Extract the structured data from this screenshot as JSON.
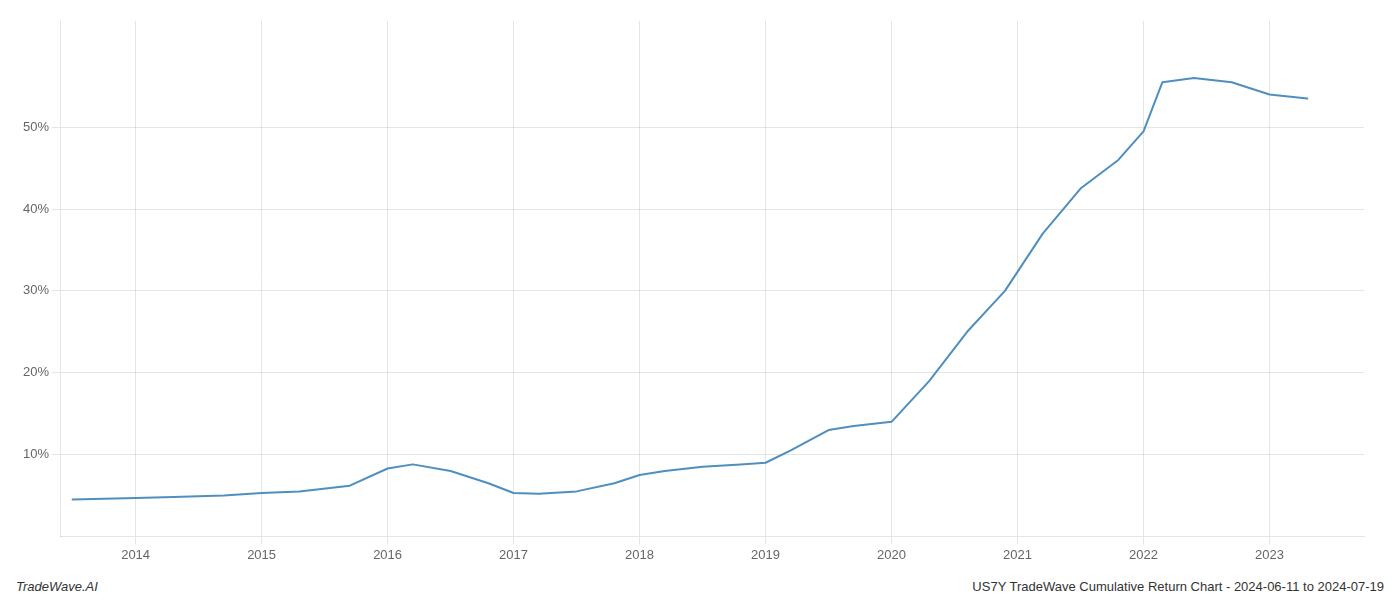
{
  "chart_data": {
    "type": "line",
    "annotations": [
      "TradeWave.AI",
      "US7Y TradeWave Cumulative Return Chart - 2024-06-11 to 2024-07-19"
    ],
    "x": [
      2013.5,
      2014.0,
      2014.3,
      2014.7,
      2015.0,
      2015.3,
      2015.7,
      2016.0,
      2016.2,
      2016.5,
      2016.8,
      2017.0,
      2017.2,
      2017.5,
      2017.8,
      2018.0,
      2018.2,
      2018.5,
      2018.8,
      2019.0,
      2019.2,
      2019.5,
      2019.7,
      2020.0,
      2020.3,
      2020.6,
      2020.9,
      2021.2,
      2021.5,
      2021.8,
      2022.0,
      2022.15,
      2022.4,
      2022.7,
      2023.0,
      2023.3
    ],
    "values": [
      4.5,
      4.7,
      4.8,
      5.0,
      5.3,
      5.5,
      6.2,
      8.3,
      8.8,
      8.0,
      6.5,
      5.3,
      5.2,
      5.5,
      6.5,
      7.5,
      8.0,
      8.5,
      8.8,
      9.0,
      10.5,
      13.0,
      13.5,
      14.0,
      19.0,
      25.0,
      30.0,
      37.0,
      42.5,
      46.0,
      49.5,
      55.5,
      56.0,
      55.5,
      54.0,
      53.5
    ],
    "color": "#4f8fbf",
    "xlim": [
      2013.4,
      2023.75
    ],
    "ylim": [
      0,
      63
    ],
    "xticks": [
      2014,
      2015,
      2016,
      2017,
      2018,
      2019,
      2020,
      2021,
      2022,
      2023
    ],
    "yticks": [
      {
        "value": 10,
        "label": "10%"
      },
      {
        "value": 20,
        "label": "20%"
      },
      {
        "value": 30,
        "label": "30%"
      },
      {
        "value": 40,
        "label": "40%"
      },
      {
        "value": 50,
        "label": "50%"
      }
    ],
    "grid": true
  }
}
